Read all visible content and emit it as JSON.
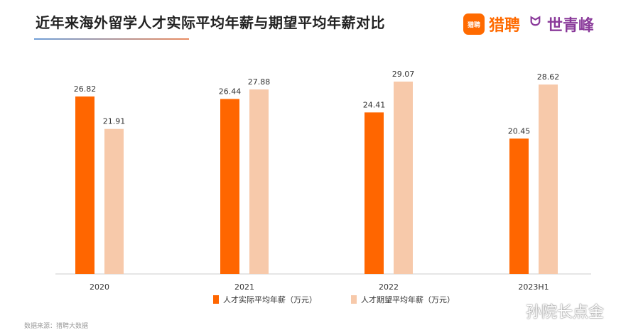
{
  "header": {
    "title": "近年来海外留学人才实际平均年薪与期望平均年薪对比",
    "logo_box_text": "猎聘",
    "logo_liepin": "猎聘",
    "logo_separator": "ᗢ",
    "logo_sqf": "世青峰"
  },
  "colors": {
    "actual": "#ff6600",
    "expected": "#f7c9aa",
    "axis": "#cccccc"
  },
  "chart_data": {
    "type": "bar",
    "categories": [
      "2020",
      "2021",
      "2022",
      "2023H1"
    ],
    "series": [
      {
        "name": "人才实际平均年薪（万元）",
        "values": [
          26.82,
          26.44,
          24.41,
          20.45
        ]
      },
      {
        "name": "人才期望平均年薪（万元）",
        "values": [
          21.91,
          27.88,
          29.07,
          28.62
        ]
      }
    ],
    "ylim": [
      0,
      30
    ],
    "grid": false,
    "legend": "bottom"
  },
  "source_text": "数据来源：猎聘大数据",
  "watermark": "孙院长点金"
}
